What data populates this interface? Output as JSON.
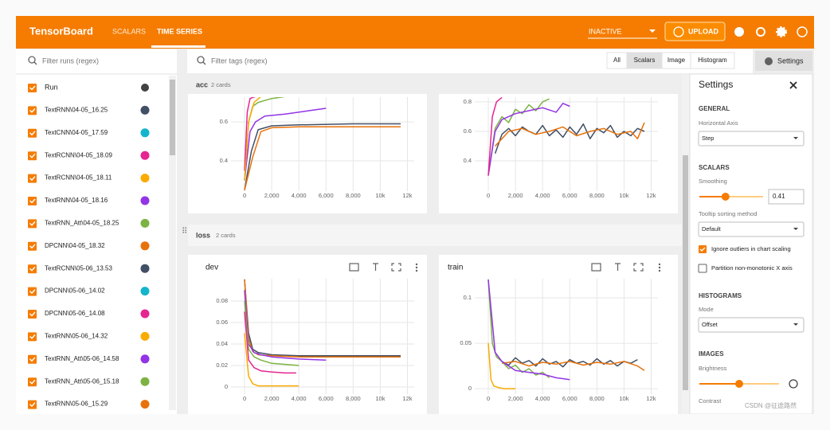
{
  "header": {
    "title": "TensorBoard",
    "tabs": [
      "SCALARS",
      "TIME SERIES"
    ],
    "reload_status": "INACTIVE",
    "upload": "UPLOAD"
  },
  "sidebar": {
    "filter_placeholder": "Filter runs (regex)",
    "column_label": "Run",
    "runs": [
      {
        "name": "TextRNN\\04-05_16.25",
        "color": "#425066"
      },
      {
        "name": "TextCNN\\04-05_17.59",
        "color": "#12b5cb"
      },
      {
        "name": "TextRCNN\\04-05_18.09",
        "color": "#e52592"
      },
      {
        "name": "TextRCNN\\04-05_18.11",
        "color": "#f9ab00"
      },
      {
        "name": "TextRNN\\04-05_18.16",
        "color": "#9334e6"
      },
      {
        "name": "TextRNN_Att\\04-05_18.25",
        "color": "#7cb342"
      },
      {
        "name": "DPCNN\\04-05_18.32",
        "color": "#e8710a"
      },
      {
        "name": "TextRCNN\\05-06_13.53",
        "color": "#425066"
      },
      {
        "name": "DPCNN\\05-06_14.02",
        "color": "#12b5cb"
      },
      {
        "name": "DPCNN\\05-06_14.08",
        "color": "#e52592"
      },
      {
        "name": "TextRNN\\05-06_14.32",
        "color": "#f9ab00"
      },
      {
        "name": "TextRNN_Att\\05-06_14.58",
        "color": "#9334e6"
      },
      {
        "name": "TextRNN_Att\\05-06_15.18",
        "color": "#7cb342"
      },
      {
        "name": "TextRNN\\05-06_15.29",
        "color": "#e8710a"
      }
    ]
  },
  "toolbar": {
    "filter_placeholder": "Filter tags (regex)",
    "views": [
      "All",
      "Scalars",
      "Image",
      "Histogram"
    ],
    "settings_button": "Settings"
  },
  "groups": [
    {
      "name": "acc",
      "count": "2 cards",
      "cards": [
        {
          "chart": {
            "type": "line",
            "xlim": [
              -1000,
              12500
            ],
            "ylim": [
              0.245,
              0.727
            ],
            "xticks": [
              0,
              {
                "value": 2000,
                "label": "2,000"
              },
              {
                "value": 4000,
                "label": "4,000"
              },
              {
                "value": 6000,
                "label": "6,000"
              },
              {
                "value": 8000,
                "label": "8,000"
              },
              {
                "value": 10000,
                "label": "10k"
              },
              {
                "value": 12000,
                "label": "12k"
              }
            ],
            "yticks": [
              0.4,
              0.6
            ],
            "series": [
              {
                "color": "#425066",
                "x": [
                  0,
                  500,
                  1000,
                  2000,
                  4000,
                  8000,
                  11500
                ],
                "values": [
                  0.25,
                  0.45,
                  0.56,
                  0.58,
                  0.585,
                  0.59,
                  0.59
                ]
              },
              {
                "color": "#e8710a",
                "x": [
                  0,
                  600,
                  1200,
                  2000,
                  4000,
                  8000,
                  11500
                ],
                "values": [
                  0.25,
                  0.42,
                  0.55,
                  0.57,
                  0.575,
                  0.575,
                  0.575
                ]
              },
              {
                "color": "#7cb342",
                "x": [
                  0,
                  300,
                  600,
                  1000,
                  2000,
                  3000,
                  4000
                ],
                "values": [
                  0.3,
                  0.6,
                  0.68,
                  0.7,
                  0.72,
                  0.73,
                  0.73
                ]
              },
              {
                "color": "#9334e6",
                "x": [
                  0,
                  400,
                  800,
                  1500,
                  3000,
                  5000,
                  6000
                ],
                "values": [
                  0.3,
                  0.55,
                  0.6,
                  0.63,
                  0.64,
                  0.66,
                  0.67
                ]
              },
              {
                "color": "#e52592",
                "x": [
                  0,
                  200,
                  400,
                  800
                ],
                "values": [
                  0.35,
                  0.65,
                  0.72,
                  0.73
                ]
              },
              {
                "color": "#f9ab00",
                "x": [
                  0,
                  300,
                  700,
                  1200
                ],
                "values": [
                  0.3,
                  0.6,
                  0.7,
                  0.73
                ]
              }
            ]
          }
        },
        {
          "chart": {
            "type": "line",
            "xlim": [
              -1000,
              12500
            ],
            "ylim": [
              0.195,
              0.832
            ],
            "xticks": [
              0,
              {
                "value": 2000,
                "label": "2,000"
              },
              {
                "value": 4000,
                "label": "4,000"
              },
              {
                "value": 6000,
                "label": "6,000"
              },
              {
                "value": 8000,
                "label": "8,000"
              },
              {
                "value": 10000,
                "label": "10k"
              },
              {
                "value": 12000,
                "label": "12k"
              }
            ],
            "yticks": [
              0.4,
              0.6,
              0.8
            ],
            "series": [
              {
                "color": "#425066",
                "x": [
                  500,
                  1000,
                  1500,
                  2000,
                  2500,
                  3000,
                  3500,
                  4000,
                  4500,
                  5000,
                  5500,
                  6000,
                  6500,
                  7000,
                  7500,
                  8000,
                  8500,
                  9000,
                  9500,
                  10000,
                  10500,
                  11000,
                  11500
                ],
                "values": [
                  0.45,
                  0.58,
                  0.62,
                  0.57,
                  0.63,
                  0.6,
                  0.58,
                  0.64,
                  0.57,
                  0.61,
                  0.56,
                  0.63,
                  0.58,
                  0.65,
                  0.55,
                  0.62,
                  0.59,
                  0.64,
                  0.56,
                  0.6,
                  0.57,
                  0.62,
                  0.6
                ]
              },
              {
                "color": "#e8710a",
                "x": [
                  500,
                  1500,
                  2500,
                  3500,
                  4500,
                  5500,
                  6500,
                  7500,
                  8500,
                  9500,
                  10500,
                  11000,
                  11500
                ],
                "values": [
                  0.5,
                  0.6,
                  0.62,
                  0.58,
                  0.6,
                  0.63,
                  0.57,
                  0.6,
                  0.62,
                  0.58,
                  0.6,
                  0.55,
                  0.66
                ]
              },
              {
                "color": "#7cb342",
                "x": [
                  0,
                  500,
                  1000,
                  1500,
                  2000,
                  2500,
                  3000,
                  3500,
                  4000,
                  4500
                ],
                "values": [
                  0.3,
                  0.62,
                  0.7,
                  0.66,
                  0.75,
                  0.72,
                  0.78,
                  0.74,
                  0.8,
                  0.82
                ]
              },
              {
                "color": "#9334e6",
                "x": [
                  0,
                  500,
                  1000,
                  2000,
                  3000,
                  4000,
                  5000,
                  5500,
                  6000
                ],
                "values": [
                  0.3,
                  0.6,
                  0.68,
                  0.72,
                  0.74,
                  0.76,
                  0.73,
                  0.79,
                  0.77
                ]
              },
              {
                "color": "#e52592",
                "x": [
                  0,
                  300,
                  600,
                  1000
                ],
                "values": [
                  0.3,
                  0.7,
                  0.8,
                  0.83
                ]
              }
            ]
          }
        }
      ]
    },
    {
      "name": "loss",
      "count": "2 cards",
      "cards": [
        {
          "title": "dev",
          "chart": {
            "type": "line",
            "xlim": [
              -1000,
              12500
            ],
            "ylim": [
              -0.0067,
              0.1007
            ],
            "xticks": [
              0,
              {
                "value": 2000,
                "label": "2,000"
              },
              {
                "value": 4000,
                "label": "4,000"
              },
              {
                "value": 6000,
                "label": "6,000"
              },
              {
                "value": 8000,
                "label": "8,000"
              },
              {
                "value": 10000,
                "label": "10k"
              },
              {
                "value": 12000,
                "label": "12k"
              }
            ],
            "yticks": [
              0,
              0.02,
              0.04,
              0.06,
              0.08
            ],
            "series": [
              {
                "color": "#425066",
                "x": [
                  0,
                  300,
                  600,
                  1000,
                  2000,
                  4000,
                  8000,
                  11500
                ],
                "values": [
                  0.1,
                  0.05,
                  0.035,
                  0.032,
                  0.03,
                  0.029,
                  0.029,
                  0.029
                ]
              },
              {
                "color": "#e8710a",
                "x": [
                  0,
                  300,
                  600,
                  1000,
                  2000,
                  4000,
                  8000,
                  11500
                ],
                "values": [
                  0.1,
                  0.045,
                  0.033,
                  0.03,
                  0.029,
                  0.028,
                  0.028,
                  0.028
                ]
              },
              {
                "color": "#9334e6",
                "x": [
                  0,
                  300,
                  700,
                  1200,
                  2000,
                  4000,
                  6000
                ],
                "values": [
                  0.09,
                  0.04,
                  0.032,
                  0.03,
                  0.028,
                  0.026,
                  0.025
                ]
              },
              {
                "color": "#7cb342",
                "x": [
                  0,
                  300,
                  700,
                  1200,
                  2000,
                  3000,
                  4000
                ],
                "values": [
                  0.08,
                  0.035,
                  0.028,
                  0.025,
                  0.022,
                  0.021,
                  0.02
                ]
              },
              {
                "color": "#e52592",
                "x": [
                  0,
                  300,
                  700,
                  1200,
                  2000,
                  3000,
                  3800
                ],
                "values": [
                  0.07,
                  0.025,
                  0.018,
                  0.015,
                  0.014,
                  0.013,
                  0.013
                ]
              },
              {
                "color": "#f9ab00",
                "x": [
                  0,
                  300,
                  600,
                  1000,
                  2000,
                  4000
                ],
                "values": [
                  0.05,
                  0.01,
                  0.003,
                  0.001,
                  0.001,
                  0.001
                ]
              }
            ]
          }
        },
        {
          "title": "train",
          "chart": {
            "type": "line",
            "xlim": [
              -1000,
              12500
            ],
            "ylim": [
              -0.006,
              0.121
            ],
            "xticks": [
              0,
              {
                "value": 2000,
                "label": "2,000"
              },
              {
                "value": 4000,
                "label": "4,000"
              },
              {
                "value": 6000,
                "label": "6,000"
              },
              {
                "value": 8000,
                "label": "8,000"
              },
              {
                "value": 10000,
                "label": "10k"
              },
              {
                "value": 12000,
                "label": "12k"
              }
            ],
            "yticks": [
              0,
              0.05,
              0.1
            ],
            "series": [
              {
                "color": "#425066",
                "x": [
                  1000,
                  1500,
                  2000,
                  2500,
                  3000,
                  3500,
                  4000,
                  4500,
                  5000,
                  5500,
                  6000,
                  6500,
                  7000,
                  7500,
                  8000,
                  8500,
                  9000,
                  9500,
                  10000,
                  10500,
                  11000
                ],
                "values": [
                  0.03,
                  0.026,
                  0.034,
                  0.028,
                  0.031,
                  0.025,
                  0.033,
                  0.027,
                  0.03,
                  0.024,
                  0.032,
                  0.028,
                  0.03,
                  0.026,
                  0.033,
                  0.027,
                  0.031,
                  0.025,
                  0.03,
                  0.028,
                  0.032
                ]
              },
              {
                "color": "#e8710a",
                "x": [
                  1000,
                  2000,
                  3000,
                  4000,
                  5000,
                  6000,
                  7000,
                  8000,
                  9000,
                  10000,
                  11000,
                  11500
                ],
                "values": [
                  0.028,
                  0.03,
                  0.025,
                  0.029,
                  0.027,
                  0.03,
                  0.026,
                  0.029,
                  0.027,
                  0.03,
                  0.025,
                  0.02
                ]
              },
              {
                "color": "#7cb342",
                "x": [
                  0,
                  300,
                  600,
                  1000,
                  1500,
                  2000,
                  2500,
                  3000,
                  3500,
                  4000,
                  4500
                ],
                "values": [
                  0.12,
                  0.05,
                  0.035,
                  0.03,
                  0.022,
                  0.026,
                  0.018,
                  0.022,
                  0.015,
                  0.018,
                  0.012
                ]
              },
              {
                "color": "#9334e6",
                "x": [
                  0,
                  500,
                  1000,
                  2000,
                  3000,
                  4000,
                  5000,
                  6000
                ],
                "values": [
                  0.12,
                  0.04,
                  0.03,
                  0.02,
                  0.018,
                  0.016,
                  0.012,
                  0.01
                ]
              },
              {
                "color": "#f9ab00",
                "x": [
                  0,
                  200,
                  400,
                  800,
                  1200,
                  2000
                ],
                "values": [
                  0.05,
                  0.01,
                  0.003,
                  0.001,
                  0,
                  0
                ]
              }
            ]
          }
        }
      ]
    }
  ],
  "settings": {
    "title": "Settings",
    "general": "GENERAL",
    "horizontal_axis_label": "Horizontal Axis",
    "horizontal_axis": "Step",
    "scalars": "SCALARS",
    "smoothing_label": "Smoothing",
    "smoothing": 0.41,
    "tooltip_label": "Tooltip sorting method",
    "tooltip": "Default",
    "ignore_outliers": "Ignore outliers in chart scaling",
    "partition": "Partition non-monotonic X axis",
    "histograms": "HISTOGRAMS",
    "mode_label": "Mode",
    "mode": "Offset",
    "images": "IMAGES",
    "brightness": "Brightness",
    "contrast": "Contrast"
  },
  "watermark": "CSDN @征途路然"
}
